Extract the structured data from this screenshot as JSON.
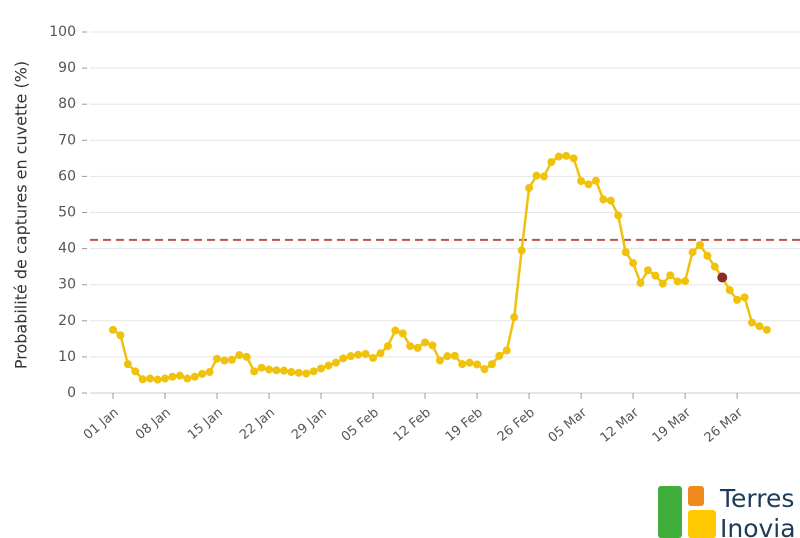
{
  "chart_data": {
    "type": "line",
    "ylabel": "Probabilité de captures en cuvette (%)",
    "categories": [
      "01 Jan",
      null,
      null,
      null,
      null,
      null,
      null,
      "08 Jan",
      null,
      null,
      null,
      null,
      null,
      null,
      "15 Jan",
      null,
      null,
      null,
      null,
      null,
      null,
      "22 Jan",
      null,
      null,
      null,
      null,
      null,
      null,
      "29 Jan",
      null,
      null,
      null,
      null,
      null,
      null,
      "05 Feb",
      null,
      null,
      null,
      null,
      null,
      null,
      "12 Feb",
      null,
      null,
      null,
      null,
      null,
      null,
      "19 Feb",
      null,
      null,
      null,
      null,
      null,
      null,
      "26 Feb",
      null,
      null,
      null,
      null,
      null,
      null,
      "05 Mar",
      null,
      null,
      null,
      null,
      null,
      null,
      "12 Mar",
      null,
      null,
      null,
      null,
      null,
      null,
      "19 Mar",
      null,
      null,
      null,
      null,
      null,
      null,
      "26 Mar",
      null,
      null,
      null,
      null
    ],
    "series": [
      {
        "color": "#f0c20c",
        "values": [
          17.5,
          16,
          8,
          6,
          3.8,
          4,
          3.7,
          4,
          4.5,
          4.8,
          4,
          4.5,
          5.3,
          5.8,
          9.5,
          9,
          9.2,
          10.5,
          10,
          6,
          7,
          6.5,
          6.3,
          6.2,
          5.8,
          5.6,
          5.4,
          6,
          6.8,
          7.6,
          8.4,
          9.6,
          10.2,
          10.6,
          10.8,
          9.7,
          11,
          13,
          17.3,
          16.5,
          13,
          12.5,
          14,
          13.2,
          9,
          10.2,
          10.3,
          8,
          8.4,
          7.9,
          6.6,
          8,
          10.3,
          11.8,
          21,
          39.5,
          56.8,
          60.2,
          60,
          64,
          65.5,
          65.7,
          65,
          58.7,
          57.8,
          58.8,
          53.6,
          53.3,
          49.2,
          39,
          36,
          30.5,
          34,
          32.5,
          30.3,
          32.6,
          30.9,
          31,
          39,
          41,
          38,
          35,
          32,
          28.5,
          25.8,
          26.5,
          19.5,
          18.5,
          17.5
        ]
      }
    ],
    "highlight": {
      "index": 82,
      "color": "#8b2a2f"
    },
    "threshold": {
      "value": 42.4,
      "color": "#c0504d"
    },
    "ylim": [
      0,
      100
    ],
    "yticks": [
      0,
      10,
      20,
      30,
      40,
      50,
      60,
      70,
      80,
      90,
      100
    ],
    "grid": true
  },
  "logo": {
    "line1": "Terres",
    "line2": "Inovia"
  }
}
